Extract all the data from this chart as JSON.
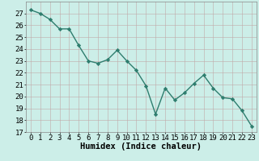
{
  "x": [
    0,
    1,
    2,
    3,
    4,
    5,
    6,
    7,
    8,
    9,
    10,
    11,
    12,
    13,
    14,
    15,
    16,
    17,
    18,
    19,
    20,
    21,
    22,
    23
  ],
  "y": [
    27.3,
    27.0,
    26.5,
    25.7,
    25.7,
    24.3,
    23.0,
    22.8,
    23.1,
    23.9,
    23.0,
    22.2,
    20.9,
    18.5,
    20.7,
    19.7,
    20.3,
    21.1,
    21.8,
    20.7,
    19.9,
    19.8,
    18.8,
    17.5
  ],
  "line_color": "#2e7d6e",
  "marker": "D",
  "marker_size": 2.2,
  "line_width": 1.0,
  "background_color": "#cceee8",
  "grid_color": "#c0a8a8",
  "xlabel": "Humidex (Indice chaleur)",
  "xlabel_fontsize": 7.5,
  "xlabel_fontweight": "bold",
  "ylim": [
    17,
    28
  ],
  "yticks": [
    17,
    18,
    19,
    20,
    21,
    22,
    23,
    24,
    25,
    26,
    27
  ],
  "xticks": [
    0,
    1,
    2,
    3,
    4,
    5,
    6,
    7,
    8,
    9,
    10,
    11,
    12,
    13,
    14,
    15,
    16,
    17,
    18,
    19,
    20,
    21,
    22,
    23
  ],
  "tick_fontsize": 6.5
}
